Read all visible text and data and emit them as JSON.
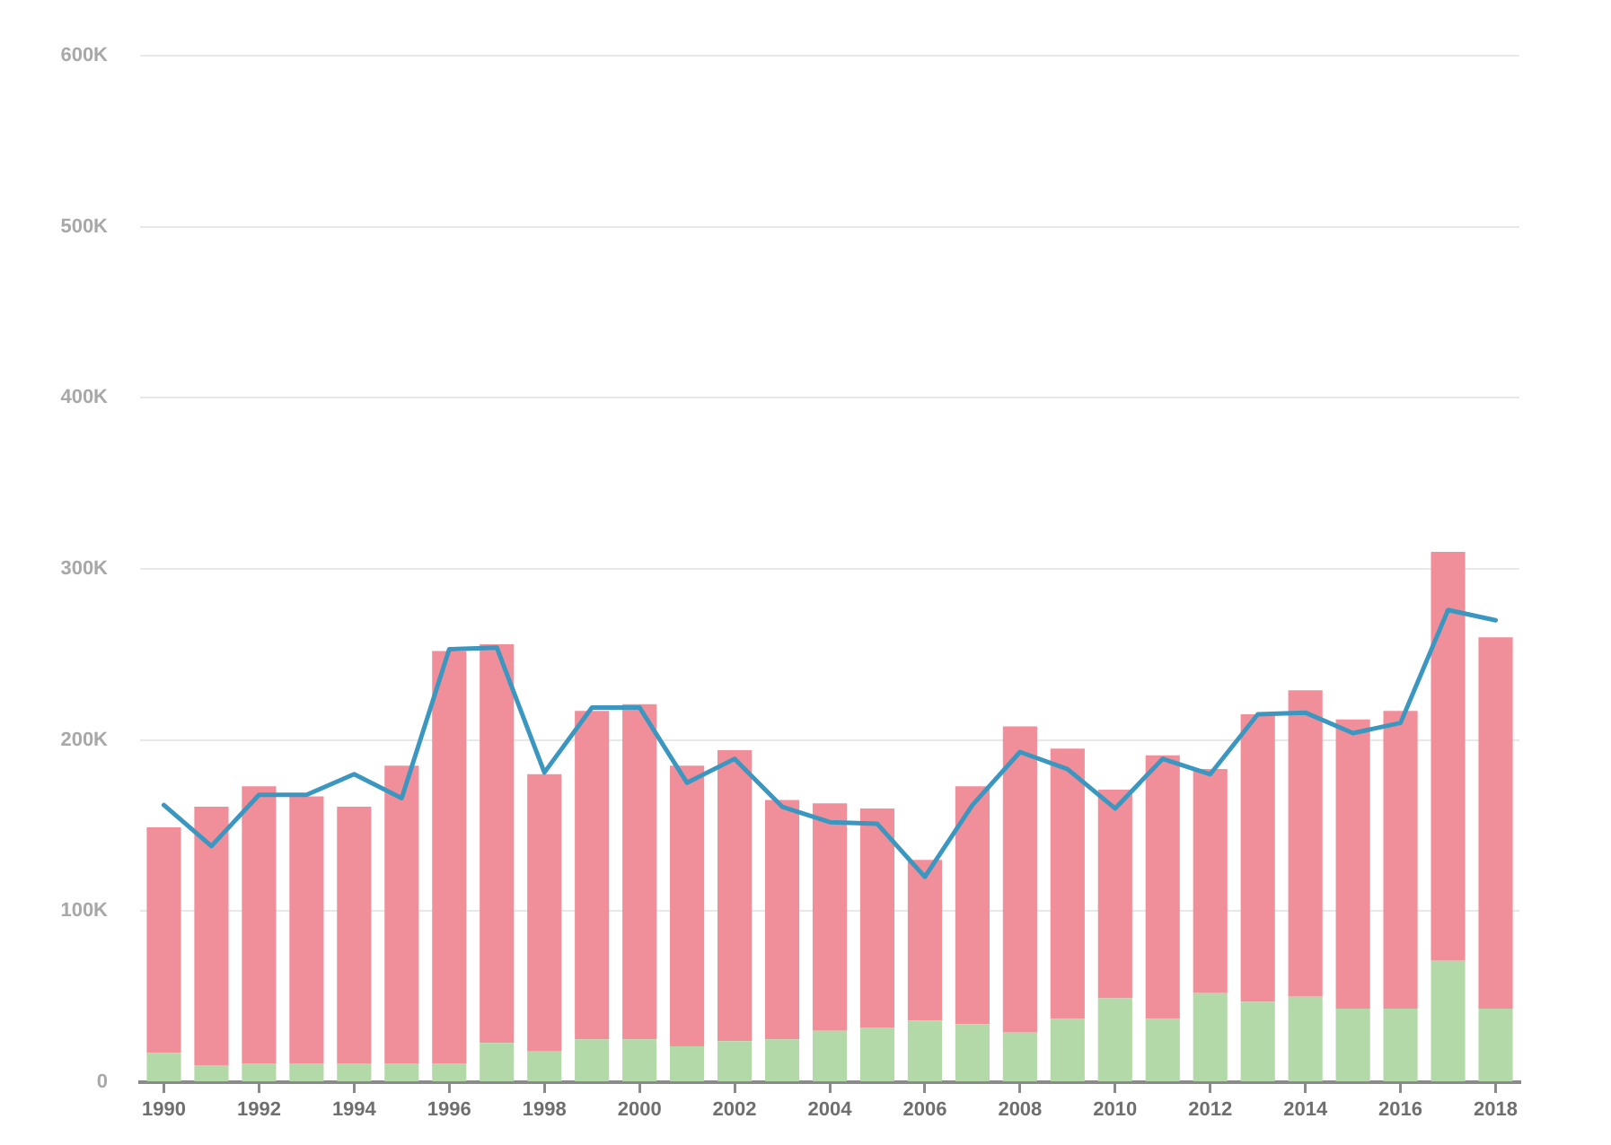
{
  "chart_data": {
    "type": "bar",
    "stacked": true,
    "categories": [
      "1990",
      null,
      "1992",
      null,
      "1994",
      null,
      "1996",
      null,
      "1998",
      null,
      "2000",
      null,
      "2002",
      null,
      "2004",
      null,
      "2006",
      null,
      "2008",
      null,
      "2010",
      null,
      "2012",
      null,
      "2014",
      null,
      "2016",
      null,
      "2018"
    ],
    "series": [
      {
        "color": "#b3d9a9",
        "values": [
          17000,
          10000,
          11000,
          11000,
          11000,
          11000,
          11000,
          23000,
          18000,
          25000,
          25000,
          21000,
          24000,
          25000,
          30000,
          32000,
          36000,
          34000,
          29000,
          37000,
          49000,
          37000,
          52000,
          47000,
          50000,
          43000,
          43000,
          71000,
          43000
        ]
      },
      {
        "color": "#f08f9a",
        "values": [
          132000,
          151000,
          162000,
          156000,
          150000,
          174000,
          241000,
          233000,
          162000,
          192000,
          196000,
          164000,
          170000,
          140000,
          133000,
          128000,
          94000,
          139000,
          179000,
          158000,
          122000,
          154000,
          131000,
          168000,
          179000,
          169000,
          174000,
          239000,
          217000
        ]
      },
      {
        "type": "line",
        "color": "#3c97c0",
        "values": [
          162000,
          138000,
          168000,
          168000,
          180000,
          166000,
          253000,
          254000,
          181000,
          219000,
          219000,
          175000,
          189000,
          161000,
          152000,
          151000,
          120000,
          162000,
          193000,
          183000,
          160000,
          189000,
          180000,
          215000,
          216000,
          204000,
          210000,
          276000,
          270000
        ]
      }
    ],
    "ylim": [
      0,
      600000
    ],
    "yticks": [
      0,
      {
        "value": 100000,
        "label": "100K"
      },
      {
        "value": 200000,
        "label": "200K"
      },
      {
        "value": 300000,
        "label": "300K"
      },
      {
        "value": 400000,
        "label": "400K"
      },
      {
        "value": 500000,
        "label": "500K"
      },
      {
        "value": 600000,
        "label": "600K"
      }
    ],
    "grid": "y"
  }
}
